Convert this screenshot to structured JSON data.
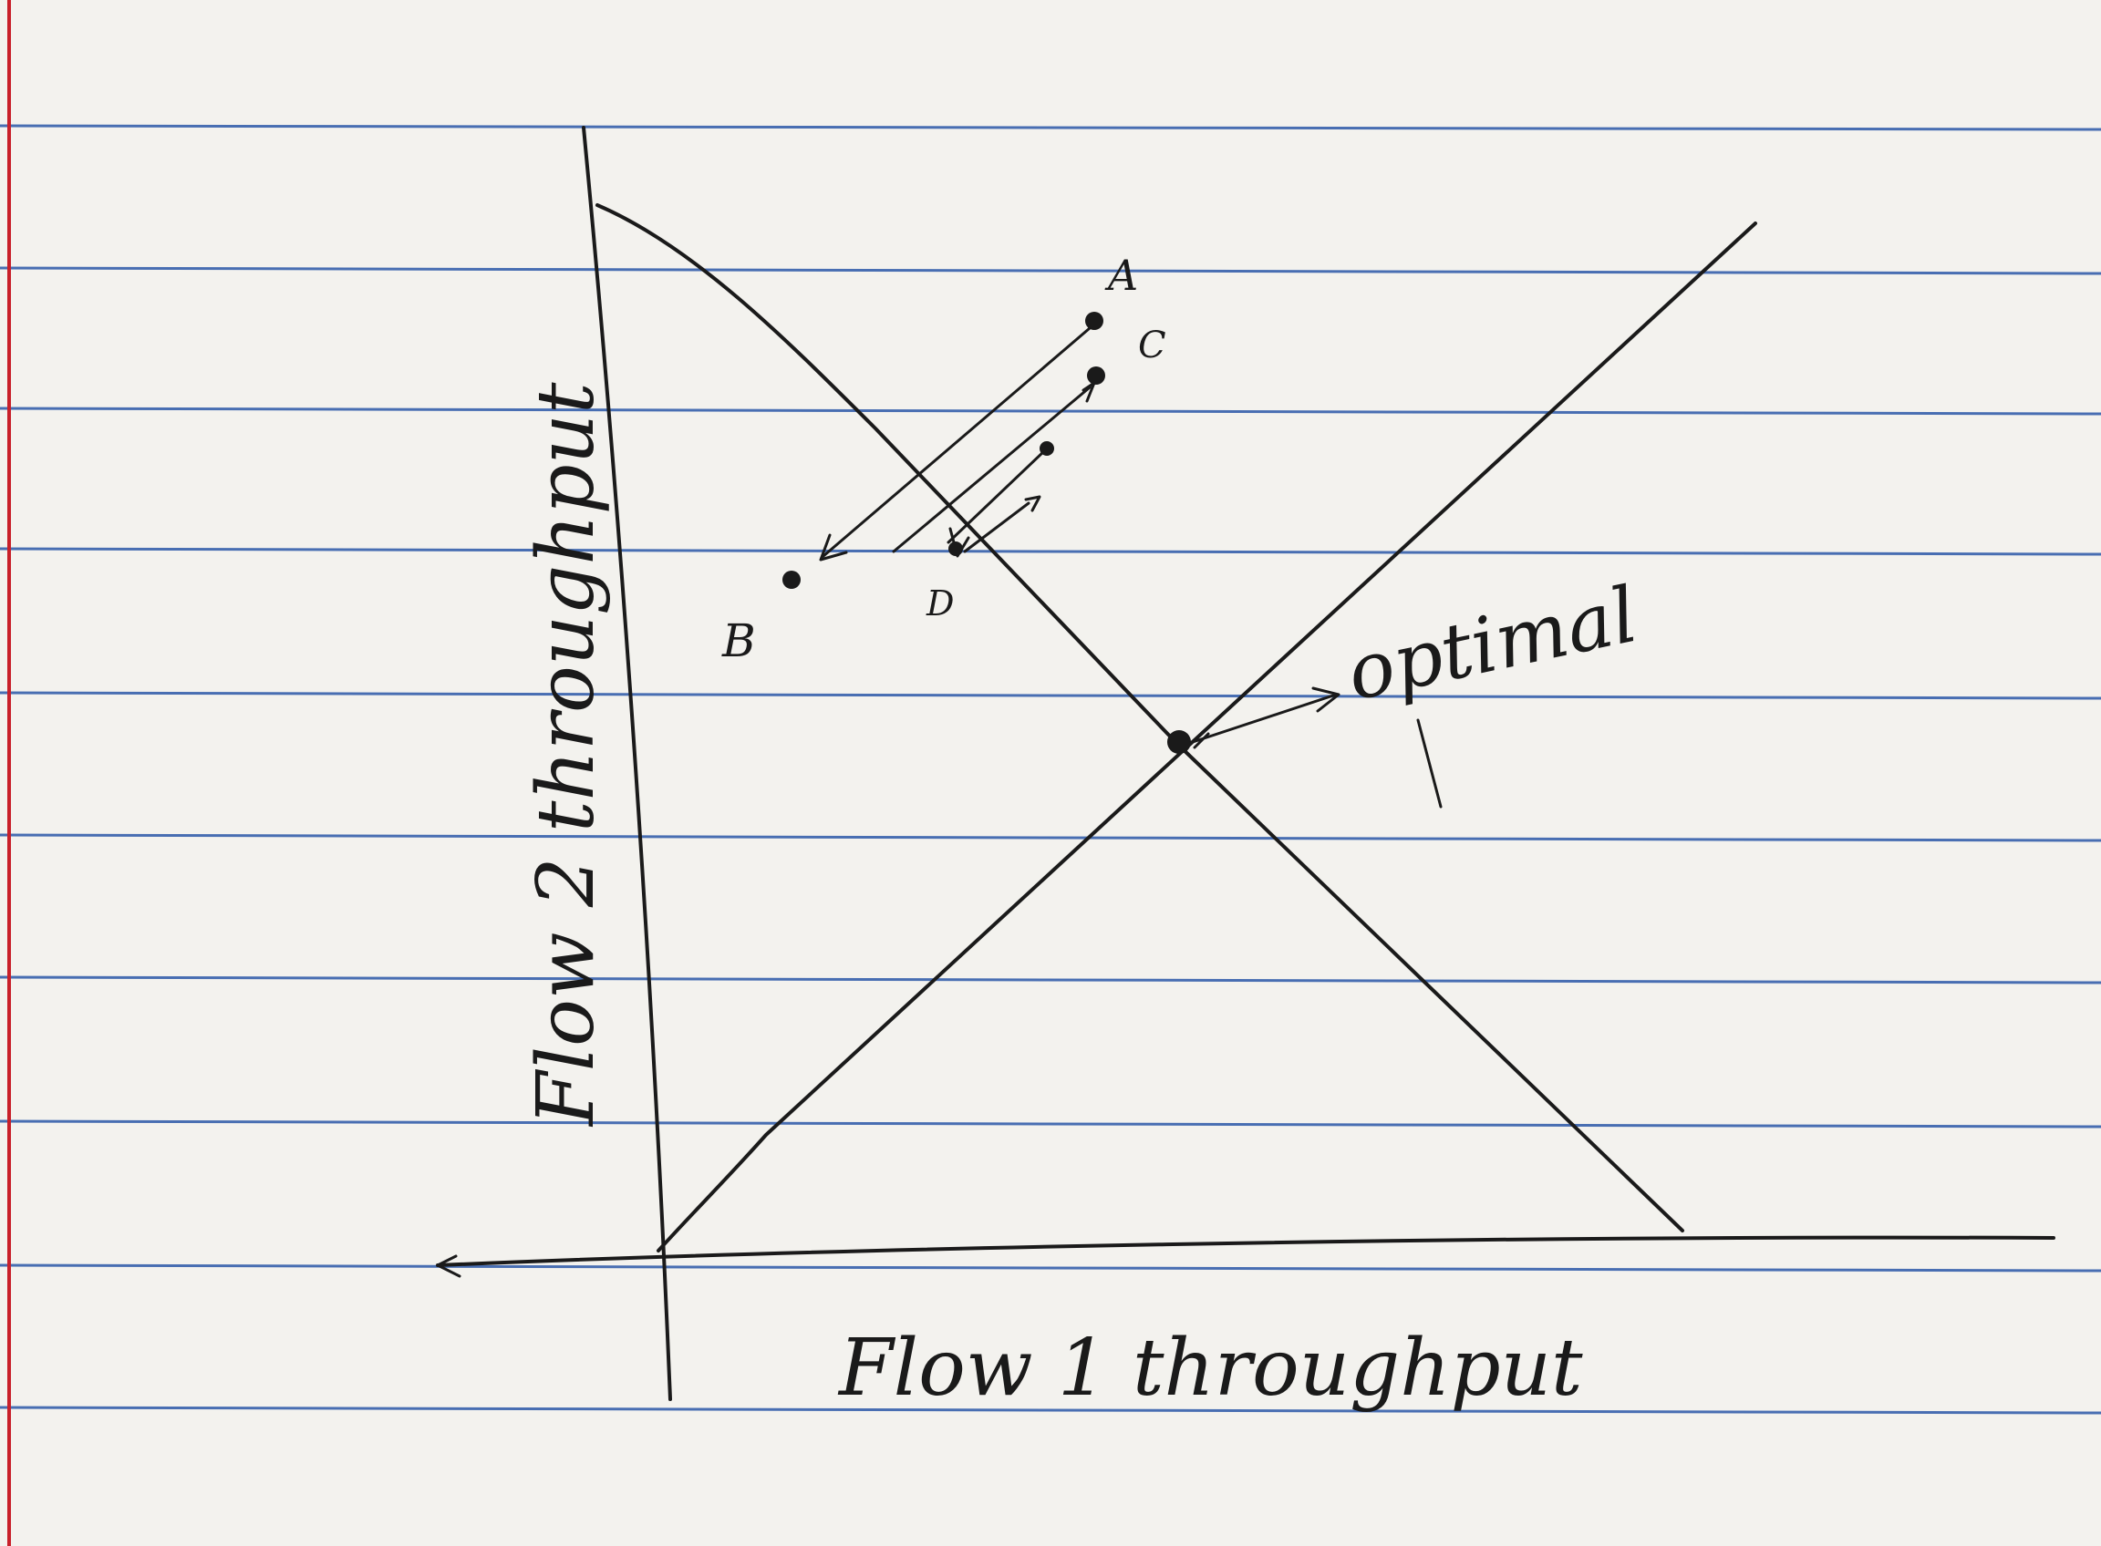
{
  "paper": {
    "rule_color": "#2b58a8",
    "margin_color": "#c8202a",
    "ink_color": "#1a1a1a"
  },
  "diagram": {
    "x_axis_label": "Flow 1 throughput",
    "y_axis_label": "Flow 2 throughput",
    "points": {
      "A": "A",
      "B": "B",
      "C": "C",
      "D": "D"
    },
    "optimal_label": "optimal"
  }
}
